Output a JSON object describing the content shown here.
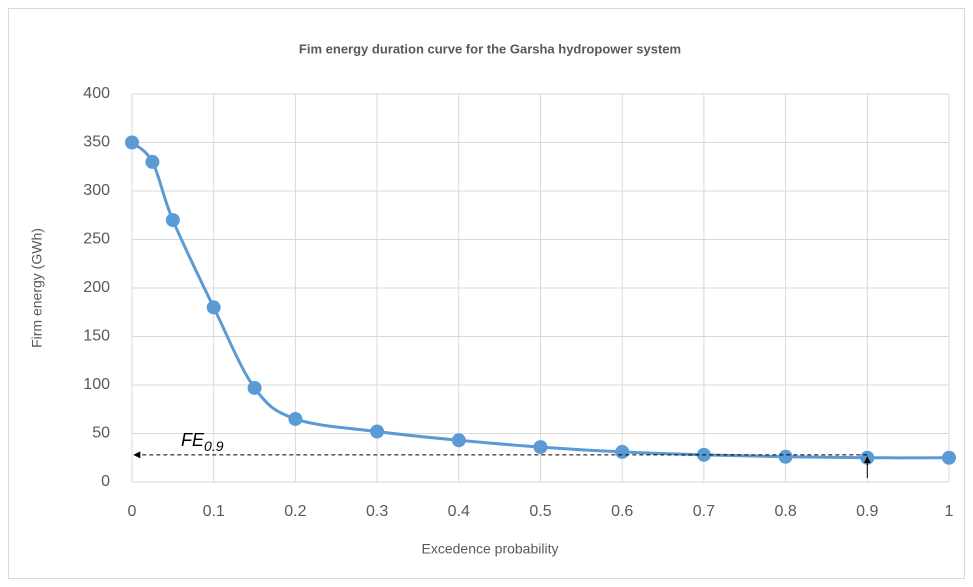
{
  "chart_data": {
    "type": "line",
    "title": "Fim energy duration curve for the Garsha hydropower system",
    "x_label": "Excedence  probability",
    "y_label": "Firm energy (GWh)",
    "x": [
      0,
      0.025,
      0.05,
      0.1,
      0.15,
      0.2,
      0.3,
      0.4,
      0.5,
      0.6,
      0.7,
      0.8,
      0.9,
      1
    ],
    "values": [
      350,
      330,
      270,
      180,
      97,
      65,
      52,
      43,
      36,
      31,
      28,
      26,
      25,
      25
    ],
    "color": "#5b9bd5",
    "smooth": true,
    "markers": true,
    "xlim": [
      0,
      1
    ],
    "xticks": [
      0,
      0.1,
      0.2,
      0.3,
      0.4,
      0.5,
      0.6,
      0.7,
      0.8,
      0.9,
      1
    ],
    "ylim": [
      0,
      400
    ],
    "yticks": [
      0,
      50,
      100,
      150,
      200,
      250,
      300,
      350,
      400
    ],
    "grid": true,
    "annotation": {
      "text": "FE",
      "subscript": "0.9",
      "x": 0.9,
      "y": 28
    }
  }
}
